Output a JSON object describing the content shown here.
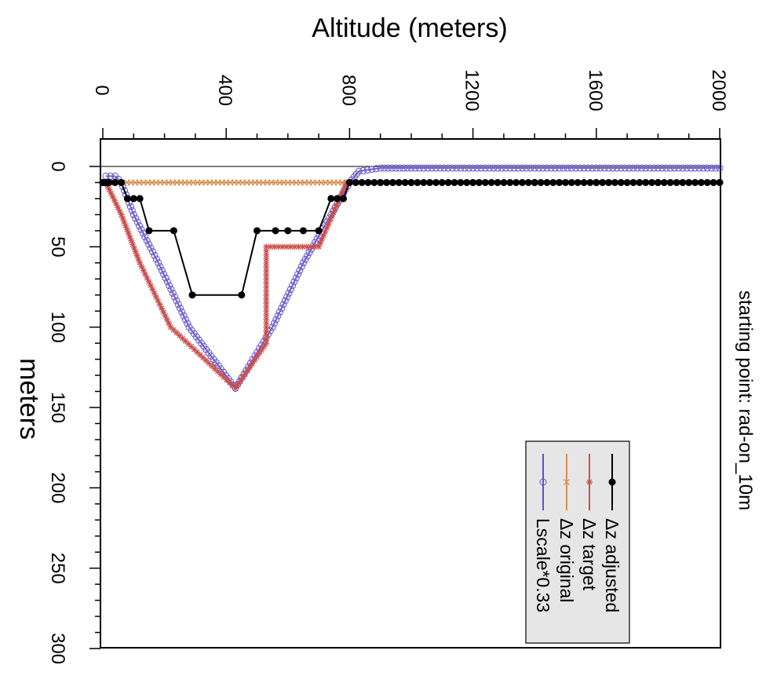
{
  "chart_data": {
    "type": "line",
    "title": "starting point: rad-on_10m",
    "xlabel": "meters",
    "ylabel": "Altitude (meters)",
    "xlim": [
      0,
      300
    ],
    "ylim": [
      0,
      2000
    ],
    "x_ticks": [
      "0",
      "50",
      "100",
      "150",
      "200",
      "250",
      "300"
    ],
    "y_ticks": [
      "0",
      "400",
      "800",
      "1200",
      "1600",
      "2000"
    ],
    "orientation": "rotated-90-clockwise",
    "legend_position": "bottom-right",
    "series": [
      {
        "name": "Δz adjusted",
        "color": "#000000",
        "marker": "filled-circle",
        "points": [
          [
            10,
            0
          ],
          [
            10,
            20
          ],
          [
            10,
            40
          ],
          [
            10,
            60
          ],
          [
            20,
            80
          ],
          [
            20,
            100
          ],
          [
            20,
            120
          ],
          [
            40,
            150
          ],
          [
            40,
            230
          ],
          [
            80,
            290
          ],
          [
            80,
            450
          ],
          [
            40,
            500
          ],
          [
            40,
            560
          ],
          [
            40,
            600
          ],
          [
            40,
            650
          ],
          [
            40,
            700
          ],
          [
            20,
            740
          ],
          [
            20,
            760
          ],
          [
            20,
            780
          ],
          [
            10,
            800
          ],
          [
            10,
            900
          ],
          [
            10,
            1000
          ],
          [
            10,
            1200
          ],
          [
            10,
            1400
          ],
          [
            10,
            1600
          ],
          [
            10,
            1800
          ],
          [
            10,
            2000
          ]
        ]
      },
      {
        "name": "Δz target",
        "color": "#c8504f",
        "marker": "star",
        "points": [
          [
            10,
            0
          ],
          [
            10,
            10
          ],
          [
            30,
            60
          ],
          [
            60,
            120
          ],
          [
            100,
            220
          ],
          [
            138,
            430
          ],
          [
            110,
            530
          ],
          [
            50,
            530
          ],
          [
            50,
            700
          ],
          [
            10,
            790
          ],
          [
            10,
            800
          ]
        ]
      },
      {
        "name": "Δz original",
        "color": "#d89050",
        "marker": "x",
        "points": [
          [
            10,
            10
          ],
          [
            10,
            200
          ],
          [
            10,
            400
          ],
          [
            10,
            600
          ],
          [
            10,
            790
          ]
        ]
      },
      {
        "name": "Lscale*0.33",
        "color": "#6050c8",
        "marker": "open-circle",
        "points": [
          [
            6,
            10
          ],
          [
            6,
            40
          ],
          [
            10,
            60
          ],
          [
            30,
            100
          ],
          [
            60,
            180
          ],
          [
            100,
            280
          ],
          [
            138,
            430
          ],
          [
            100,
            550
          ],
          [
            60,
            650
          ],
          [
            30,
            740
          ],
          [
            10,
            800
          ],
          [
            3,
            830
          ],
          [
            1,
            900
          ],
          [
            1,
            1000
          ],
          [
            1,
            1200
          ],
          [
            1,
            1400
          ],
          [
            1,
            1600
          ],
          [
            1,
            1800
          ],
          [
            1,
            2000
          ]
        ]
      }
    ]
  }
}
